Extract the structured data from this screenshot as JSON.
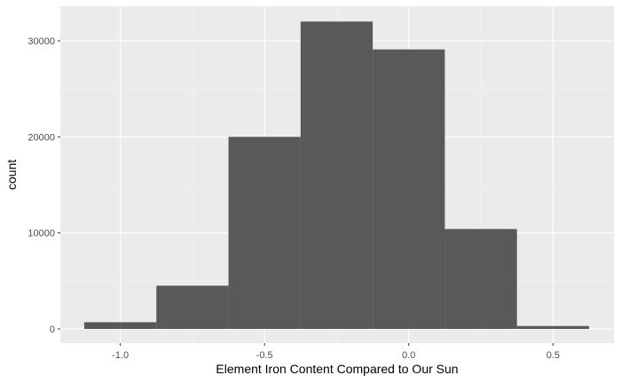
{
  "chart_data": {
    "type": "bar",
    "subtype": "histogram",
    "xlabel": "Element Iron Content Compared to Our Sun",
    "ylabel": "count",
    "xlim": [
      -1.125,
      0.625
    ],
    "ylim": [
      0,
      32000
    ],
    "x_ticks": [
      {
        "value": -1.0,
        "label": "-1.0"
      },
      {
        "value": -0.5,
        "label": "-0.5"
      },
      {
        "value": 0.0,
        "label": "0.0"
      },
      {
        "value": 0.5,
        "label": "0.5"
      }
    ],
    "y_ticks": [
      {
        "value": 0,
        "label": "0"
      },
      {
        "value": 10000,
        "label": "10000"
      },
      {
        "value": 20000,
        "label": "20000"
      },
      {
        "value": 30000,
        "label": "30000"
      }
    ],
    "bins": [
      {
        "x0": -1.125,
        "x1": -0.875,
        "count": 700
      },
      {
        "x0": -0.875,
        "x1": -0.625,
        "count": 4500
      },
      {
        "x0": -0.625,
        "x1": -0.375,
        "count": 20000
      },
      {
        "x0": -0.375,
        "x1": -0.125,
        "count": 32000
      },
      {
        "x0": -0.125,
        "x1": 0.125,
        "count": 29100
      },
      {
        "x0": 0.125,
        "x1": 0.375,
        "count": 10400
      },
      {
        "x0": 0.375,
        "x1": 0.625,
        "count": 300
      }
    ],
    "grid": true,
    "colors": {
      "panel_background": "#ebebeb",
      "grid_major": "#ffffff",
      "grid_minor": "#f5f5f5",
      "bar_fill": "#595959",
      "tick_label": "#4d4d4d",
      "axis_title": "#000000"
    }
  }
}
